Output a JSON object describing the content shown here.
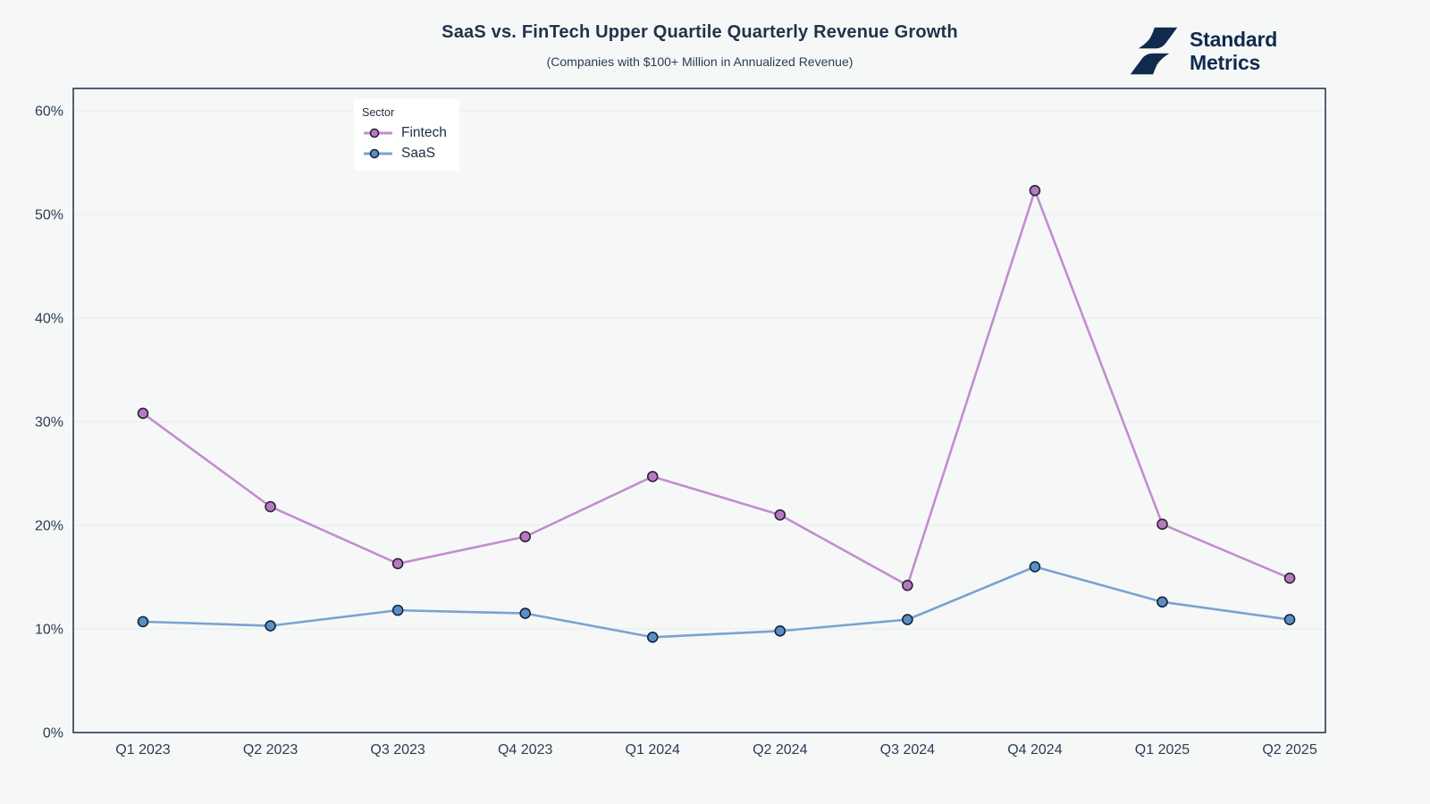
{
  "header": {
    "title": "SaaS vs. FinTech Upper Quartile Quarterly Revenue Growth",
    "subtitle": "(Companies with $100+ Million in Annualized Revenue)"
  },
  "logo": {
    "line1": "Standard",
    "line2": "Metrics",
    "color": "#0f2a4d"
  },
  "legend": {
    "title": "Sector",
    "items": [
      {
        "label": "Fintech"
      },
      {
        "label": "SaaS"
      }
    ]
  },
  "colors": {
    "background": "#f6f8f8",
    "grid": "#e8eaed",
    "frame": "#2b3a52",
    "text": "#2c3c52",
    "legend_background": "#ffffff",
    "fintech_line": "#c38dce",
    "saas_line": "#7aa3d0"
  },
  "chart_data": {
    "type": "line",
    "title": "SaaS vs. FinTech Upper Quartile Quarterly Revenue Growth",
    "subtitle": "(Companies with $100+ Million in Annualized Revenue)",
    "xlabel": "",
    "ylabel": "",
    "ylim": [
      0,
      60
    ],
    "grid": true,
    "legend_title": "Sector",
    "legend_position": "top-left-inside",
    "y_unit": "%",
    "yticks": [
      "0%",
      "10%",
      "20%",
      "30%",
      "40%",
      "50%",
      "60%"
    ],
    "categories": [
      "Q1 2023",
      "Q2 2023",
      "Q3 2023",
      "Q4 2023",
      "Q1 2024",
      "Q2 2024",
      "Q3 2024",
      "Q4 2024",
      "Q1 2025",
      "Q2 2025"
    ],
    "series": [
      {
        "name": "Fintech",
        "color": "#c38dce",
        "marker_color": "#b57ac1",
        "marker_stroke": "#2a2430",
        "values": [
          30.8,
          21.8,
          16.3,
          18.9,
          24.7,
          21.0,
          14.2,
          52.3,
          20.1,
          14.9
        ]
      },
      {
        "name": "SaaS",
        "color": "#7aa3d0",
        "marker_color": "#5a8fc2",
        "marker_stroke": "#13243b",
        "values": [
          10.7,
          10.3,
          11.8,
          11.5,
          9.2,
          9.8,
          10.9,
          16.0,
          12.6,
          10.9
        ]
      }
    ]
  }
}
